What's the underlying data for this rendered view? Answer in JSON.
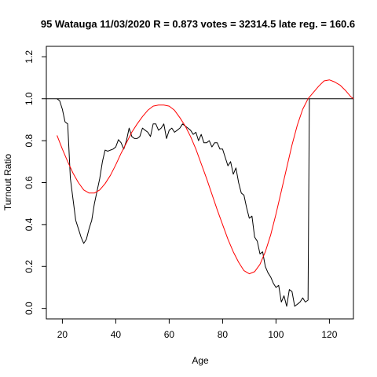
{
  "chart_data": {
    "type": "line",
    "title": "95 Watauga 11/03/2020 R = 0.873 votes = 32314.5 late reg. = 160.6",
    "xlabel": "Age",
    "ylabel": "Turnout Ratio",
    "xlim": [
      14,
      129
    ],
    "ylim": [
      -0.05,
      1.25
    ],
    "x_ticks": [
      20,
      40,
      60,
      80,
      100,
      120
    ],
    "x_tick_labels": [
      "20",
      "40",
      "60",
      "80",
      "100",
      "120"
    ],
    "y_ticks": [
      0.0,
      0.2,
      0.4,
      0.6,
      0.8,
      1.0,
      1.2
    ],
    "y_tick_labels": [
      "0.0",
      "0.2",
      "0.4",
      "0.6",
      "0.8",
      "1.0",
      "1.2"
    ],
    "reference_line": {
      "y": 1.0,
      "color": "#000000"
    },
    "series": [
      {
        "color": "#000000",
        "x": [
          18,
          19,
          20,
          21,
          22,
          23,
          24,
          25,
          26,
          27,
          28,
          29,
          30,
          31,
          32,
          33,
          34,
          35,
          36,
          37,
          38,
          39,
          40,
          41,
          42,
          43,
          44,
          45,
          46,
          47,
          48,
          49,
          50,
          51,
          52,
          53,
          54,
          55,
          56,
          57,
          58,
          59,
          60,
          61,
          62,
          63,
          64,
          65,
          66,
          67,
          68,
          69,
          70,
          71,
          72,
          73,
          74,
          75,
          76,
          77,
          78,
          79,
          80,
          81,
          82,
          83,
          84,
          85,
          86,
          87,
          88,
          89,
          90,
          91,
          92,
          93,
          94,
          95,
          96,
          97,
          98,
          99,
          100,
          101,
          102,
          103,
          104,
          105,
          106,
          107,
          108,
          109,
          110,
          111,
          112,
          112.5
        ],
        "y": [
          1.0,
          0.99,
          0.95,
          0.89,
          0.88,
          0.62,
          0.52,
          0.42,
          0.38,
          0.34,
          0.31,
          0.33,
          0.38,
          0.42,
          0.5,
          0.56,
          0.62,
          0.7,
          0.755,
          0.75,
          0.755,
          0.76,
          0.77,
          0.805,
          0.79,
          0.76,
          0.8,
          0.86,
          0.82,
          0.81,
          0.81,
          0.82,
          0.86,
          0.85,
          0.84,
          0.82,
          0.88,
          0.88,
          0.85,
          0.86,
          0.88,
          0.81,
          0.85,
          0.86,
          0.84,
          0.85,
          0.86,
          0.88,
          0.87,
          0.86,
          0.85,
          0.83,
          0.84,
          0.8,
          0.83,
          0.79,
          0.79,
          0.8,
          0.77,
          0.79,
          0.79,
          0.76,
          0.76,
          0.72,
          0.68,
          0.7,
          0.64,
          0.67,
          0.6,
          0.55,
          0.54,
          0.48,
          0.43,
          0.44,
          0.34,
          0.32,
          0.26,
          0.27,
          0.2,
          0.17,
          0.15,
          0.12,
          0.1,
          0.11,
          0.03,
          0.06,
          0.01,
          0.09,
          0.08,
          0.01,
          0.02,
          0.03,
          0.05,
          0.03,
          0.04,
          1.0
        ]
      },
      {
        "color": "#ff0000",
        "x": [
          18,
          20,
          22,
          24,
          26,
          28,
          30,
          32,
          34,
          36,
          38,
          40,
          42,
          44,
          46,
          48,
          50,
          52,
          54,
          56,
          58,
          60,
          62,
          64,
          66,
          68,
          70,
          72,
          74,
          76,
          78,
          80,
          82,
          84,
          86,
          88,
          90,
          92,
          94,
          96,
          98,
          100,
          102,
          104,
          106,
          108,
          110,
          112,
          114,
          116,
          118,
          120,
          122,
          124,
          126,
          128,
          129
        ],
        "y": [
          0.825,
          0.76,
          0.7,
          0.645,
          0.6,
          0.565,
          0.55,
          0.55,
          0.565,
          0.595,
          0.635,
          0.685,
          0.74,
          0.79,
          0.84,
          0.88,
          0.915,
          0.945,
          0.965,
          0.97,
          0.97,
          0.965,
          0.945,
          0.91,
          0.87,
          0.82,
          0.76,
          0.69,
          0.62,
          0.545,
          0.47,
          0.4,
          0.33,
          0.27,
          0.22,
          0.18,
          0.165,
          0.175,
          0.21,
          0.27,
          0.35,
          0.45,
          0.56,
          0.67,
          0.78,
          0.875,
          0.95,
          1.0,
          1.03,
          1.06,
          1.085,
          1.09,
          1.08,
          1.065,
          1.04,
          1.01,
          1.0
        ]
      }
    ]
  }
}
